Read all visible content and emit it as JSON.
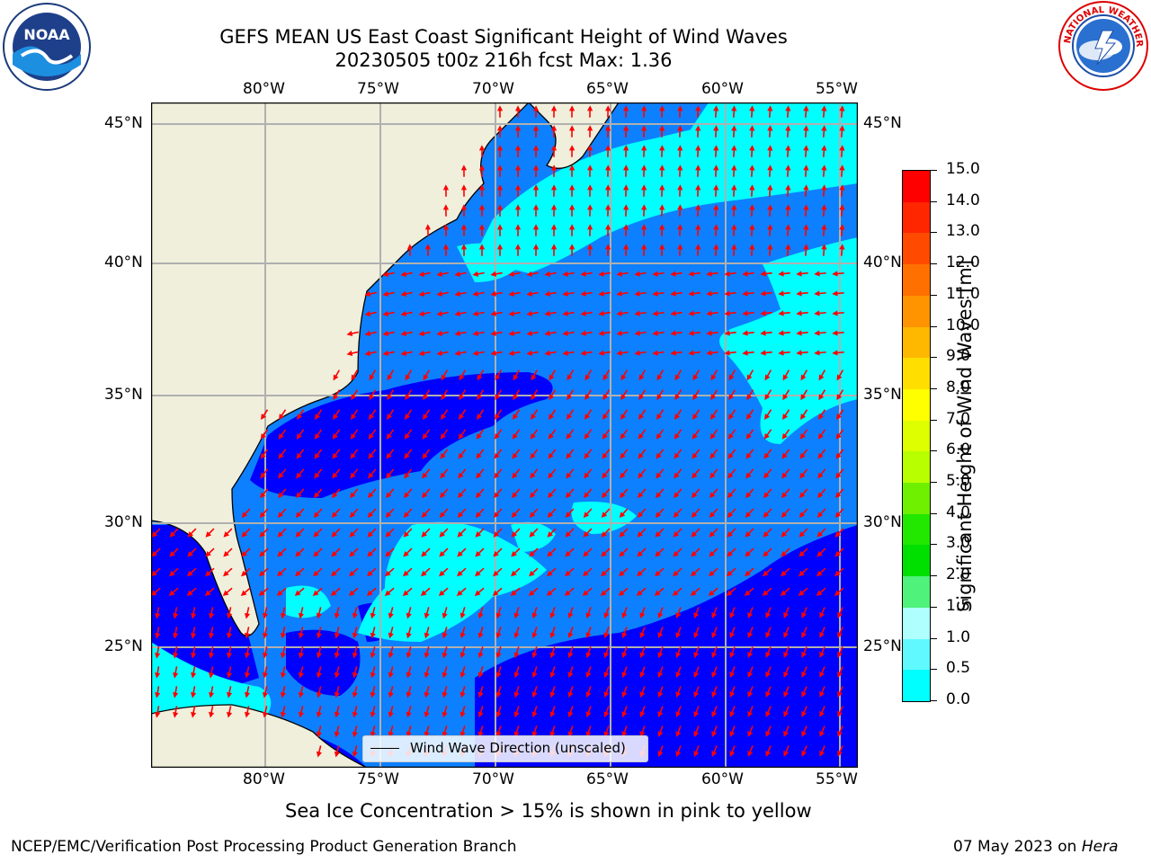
{
  "title_line1": "GEFS MEAN US East Coast Significant Height of Wind Waves",
  "title_line2": "20230505 t00z 216h fcst   Max: 1.36",
  "logos": {
    "left": "NOAA",
    "right": "NATIONAL WEATHER SERVICE"
  },
  "lon_labels": [
    "80°W",
    "75°W",
    "70°W",
    "65°W",
    "60°W",
    "55°W"
  ],
  "lat_labels": [
    "45°N",
    "40°N",
    "35°N",
    "30°N",
    "25°N"
  ],
  "colorbar": {
    "label": "Significant Height of Wind Waves [m]",
    "ticks": [
      "15.0",
      "14.0",
      "13.0",
      "12.0",
      "11.0",
      "10.0",
      "9.0",
      "8.0",
      "7.0",
      "6.0",
      "5.0",
      "4.0",
      "3.0",
      "2.0",
      "1.5",
      "1.0",
      "0.5",
      "0.0"
    ],
    "colors": [
      "#ff0000",
      "#ff2600",
      "#ff4a00",
      "#ff7000",
      "#ff9400",
      "#ffb800",
      "#ffde00",
      "#ffff00",
      "#ddff00",
      "#b8ff00",
      "#6ef000",
      "#22e800",
      "#00e000",
      "#4ff27a",
      "#b0ffff",
      "#5ff9ff",
      "#00ffff",
      "#0d80ff",
      "#0000ff"
    ]
  },
  "legend": {
    "label": "Wind Wave Direction (unscaled)"
  },
  "note": "Sea Ice Concentration > 15% is shown in pink to yellow",
  "footer_left": "NCEP/EMC/Verification Post Processing Product Generation Branch",
  "footer_right_prefix": "07 May 2023 on ",
  "footer_right_host": "Hera"
}
